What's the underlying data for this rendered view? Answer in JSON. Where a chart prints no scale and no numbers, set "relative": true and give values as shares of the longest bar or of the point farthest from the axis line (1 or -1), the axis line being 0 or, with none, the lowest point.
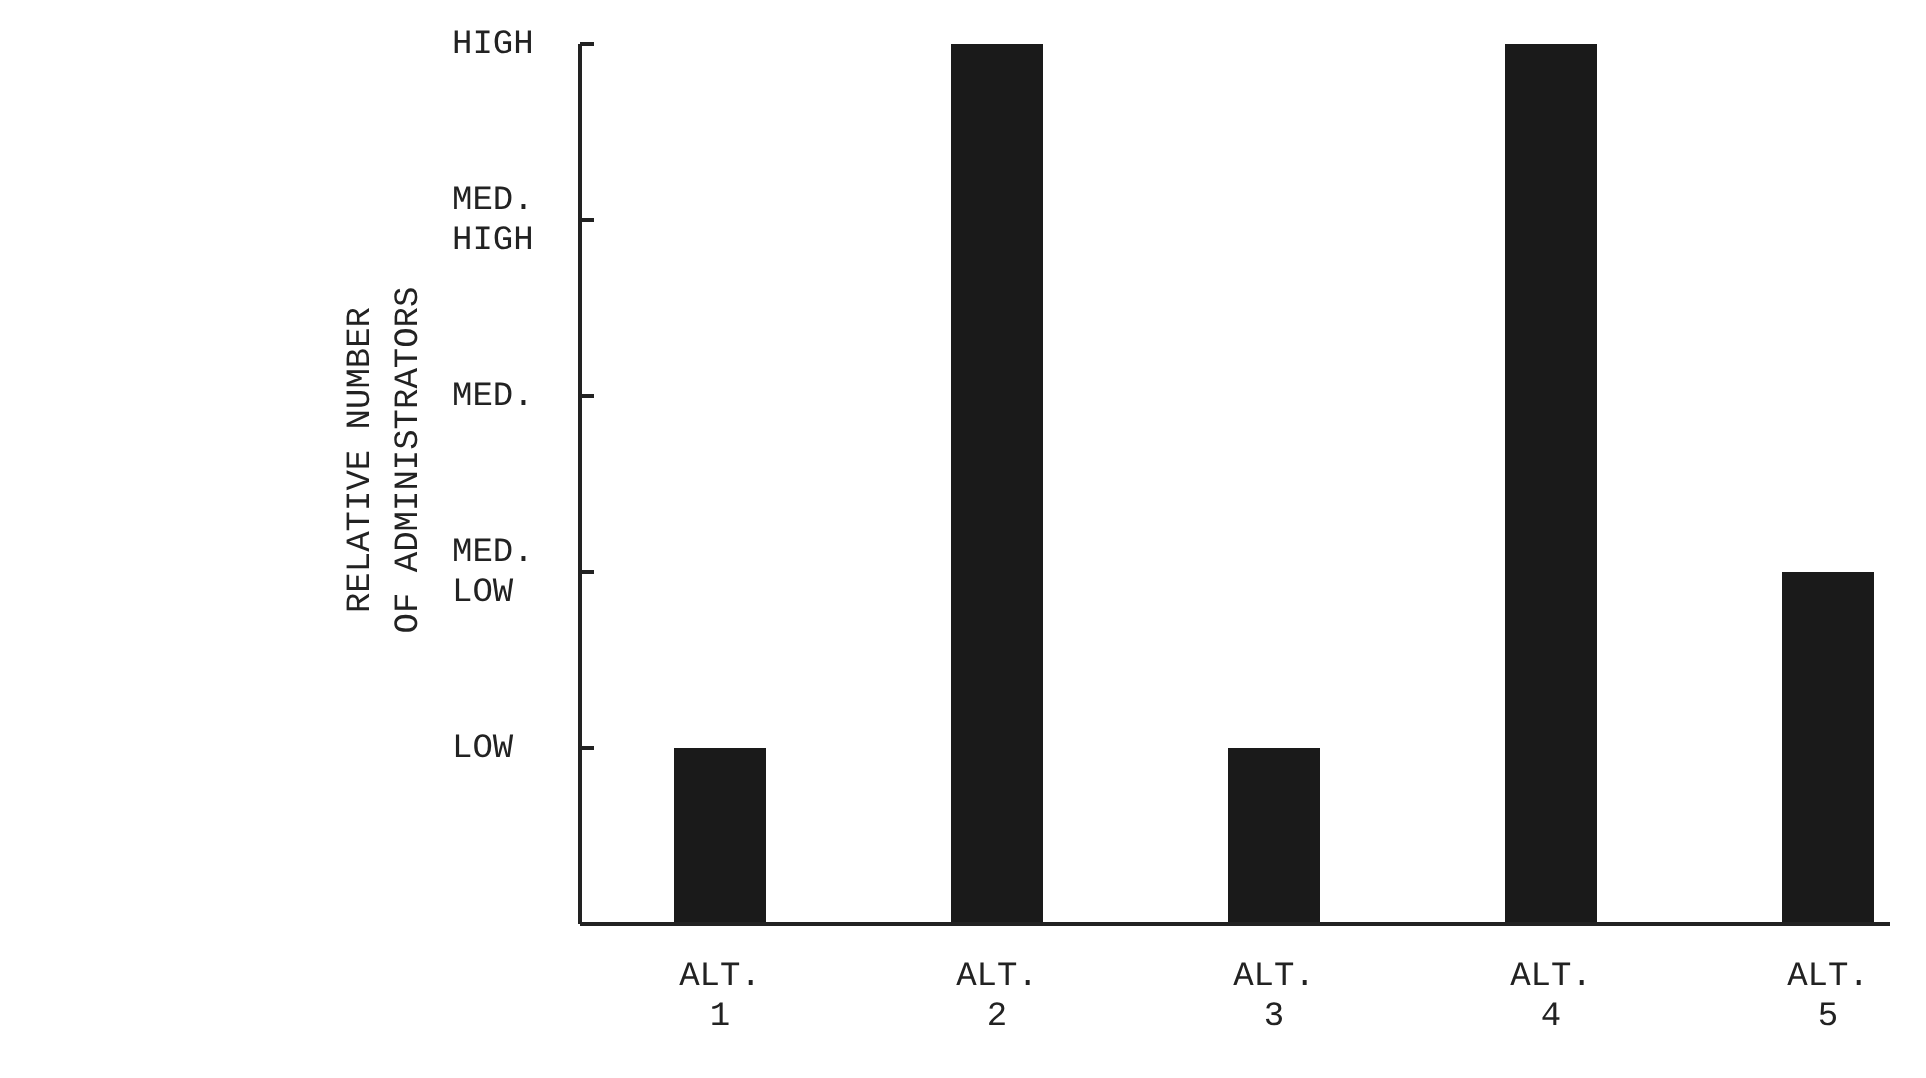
{
  "chart_data": {
    "type": "bar",
    "ylabel": "RELATIVE NUMBER\nOF ADMINISTRATORS",
    "categories": [
      "ALT.\n1",
      "ALT.\n2",
      "ALT.\n3",
      "ALT.\n4",
      "ALT.\n5"
    ],
    "values": [
      0.2,
      1,
      0.2,
      1,
      0.4
    ],
    "color": "#1a1a1a",
    "relative": true,
    "annotations": [
      "LOW",
      "MED.\nLOW",
      "MED.",
      "MED.\nHIGH",
      "HIGH"
    ]
  }
}
